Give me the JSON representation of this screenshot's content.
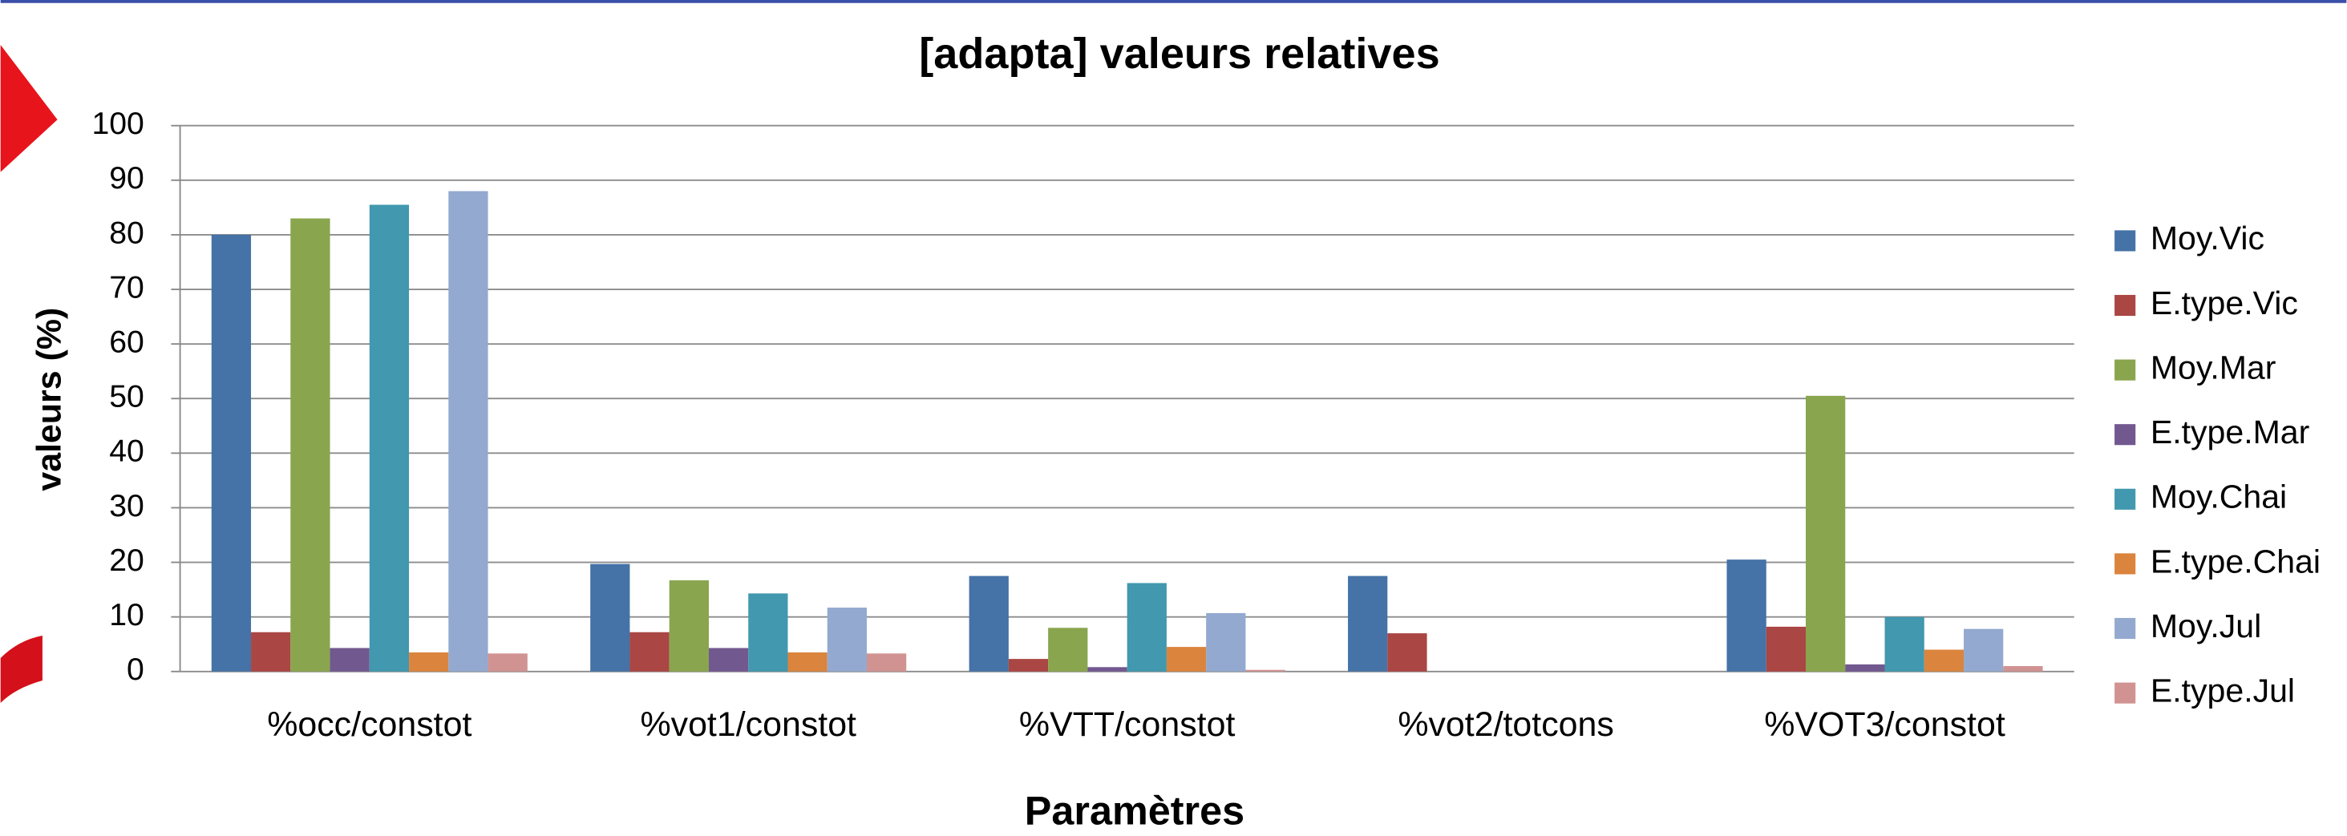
{
  "chart_data": {
    "type": "bar",
    "title": "[adapta] valeurs relatives",
    "x_label": "Paramètres",
    "y_label": "valeurs (%)",
    "categories": [
      "%occ/constot",
      "%vot1/constot",
      "%VTT/constot",
      "%vot2/totcons",
      "%VOT3/constot"
    ],
    "series": [
      {
        "name": "Moy.Vic",
        "color": "#4572a7",
        "values": [
          80,
          19.7,
          17.5,
          17.5,
          20.5
        ]
      },
      {
        "name": "E.type.Vic",
        "color": "#aa4643",
        "values": [
          7.2,
          7.2,
          2.3,
          7,
          8.2
        ]
      },
      {
        "name": "Moy.Mar",
        "color": "#89a54e",
        "values": [
          83,
          16.7,
          8,
          0,
          50.5
        ]
      },
      {
        "name": "E.type.Mar",
        "color": "#71588f",
        "values": [
          4.3,
          4.3,
          0.8,
          0,
          1.3
        ]
      },
      {
        "name": "Moy.Chai",
        "color": "#4198af",
        "values": [
          85.5,
          14.3,
          16.2,
          0,
          10
        ]
      },
      {
        "name": "E.type.Chai",
        "color": "#db843d",
        "values": [
          3.5,
          3.5,
          4.5,
          0,
          4
        ]
      },
      {
        "name": "Moy.Jul",
        "color": "#93a9cf",
        "values": [
          88,
          11.7,
          10.7,
          0,
          7.8
        ]
      },
      {
        "name": "E.type.Jul",
        "color": "#d19392",
        "values": [
          3.3,
          3.3,
          0.3,
          0,
          1
        ]
      }
    ],
    "ylim": [
      0,
      100
    ],
    "yticks": [
      0,
      10,
      20,
      30,
      40,
      50,
      60,
      70,
      80,
      90,
      100
    ],
    "grid": true,
    "legend": "right"
  }
}
